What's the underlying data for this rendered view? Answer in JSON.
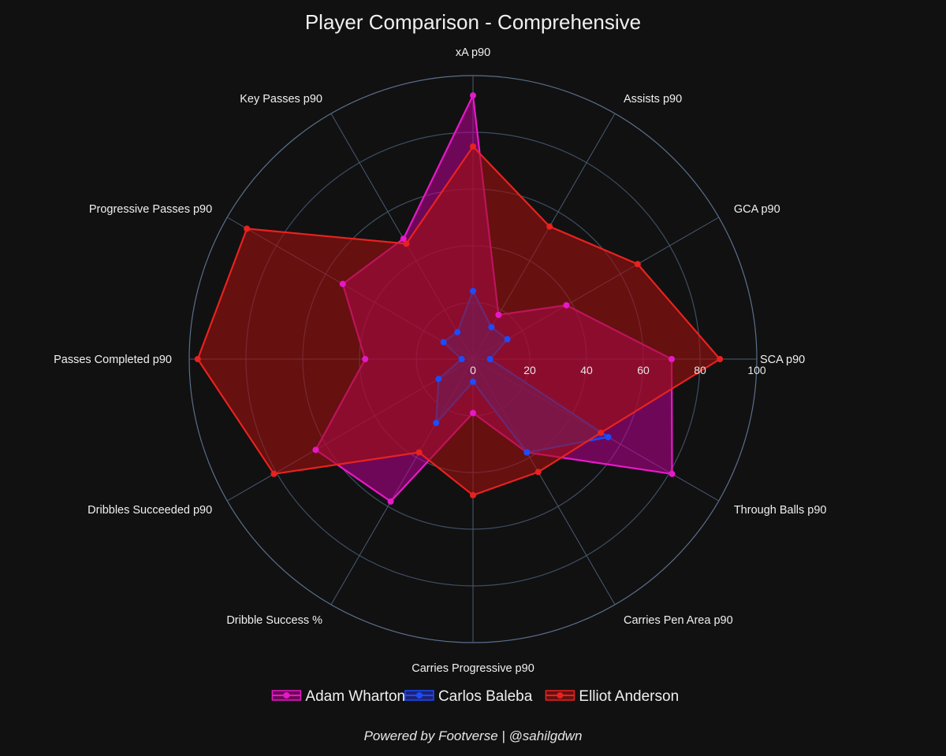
{
  "chart_data": {
    "type": "radar",
    "title": "Player Comparison - Comprehensive",
    "footer": "Powered by Footverse | @sahilgdwn",
    "axes": [
      "SCA p90",
      "GCA p90",
      "Assists p90",
      "xA p90",
      "Key Passes p90",
      "Progressive Passes p90",
      "Passes Completed p90",
      "Dribbles Succeeded p90",
      "Dribble Success %",
      "Carries Progressive p90",
      "Carries Pen Area p90",
      "Through Balls p90"
    ],
    "radial_ticks": [
      0,
      20,
      40,
      60,
      80,
      100
    ],
    "rlim": [
      0,
      100
    ],
    "grid": true,
    "legend_position": "bottom",
    "series": [
      {
        "name": "Adam Wharton",
        "color": "#e619c8",
        "fill": "rgba(190,0,150,0.55)",
        "values": [
          70,
          38,
          18,
          93,
          49,
          53,
          38,
          64,
          58,
          19,
          38,
          81
        ]
      },
      {
        "name": "Carlos Baleba",
        "color": "#1a4dff",
        "fill": "rgba(40,50,200,0.55)",
        "values": [
          6,
          14,
          13,
          24,
          11,
          12,
          4,
          14,
          26,
          8,
          38,
          55
        ]
      },
      {
        "name": "Elliot Anderson",
        "color": "#e8221f",
        "fill": "rgba(160,16,16,0.6)",
        "values": [
          87,
          67,
          54,
          75,
          47,
          92,
          97,
          81,
          38,
          48,
          46,
          52
        ]
      }
    ]
  }
}
